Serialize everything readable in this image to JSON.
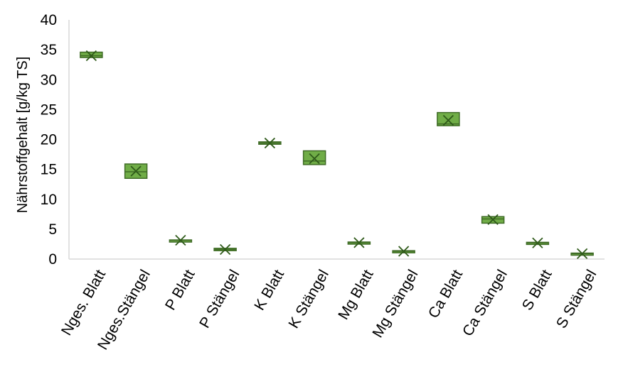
{
  "chart_data": {
    "type": "box",
    "title": "",
    "xlabel": "",
    "ylabel": "Nährstoffgehalt [g/kg TS]",
    "ylim": [
      0,
      40
    ],
    "yticks": [
      0,
      5,
      10,
      15,
      20,
      25,
      30,
      35,
      40
    ],
    "grid": false,
    "legend": "none",
    "box_fill_color": "#70AD47",
    "box_edge_color": "#3F6B26",
    "categories": [
      "Nges. Blatt",
      "Nges.Stängel",
      "P Blatt",
      "P Stängel",
      "K Blatt",
      "K Stängel",
      "Mg Blatt",
      "Mg Stängel",
      "Ca Blatt",
      "Ca Stängel",
      "S Blatt",
      "S Stängel"
    ],
    "boxes": [
      {
        "q1": 33.7,
        "median": 34.0,
        "q3": 34.6,
        "mean": 34.0
      },
      {
        "q1": 13.5,
        "median": 14.6,
        "q3": 15.9,
        "mean": 14.7
      },
      {
        "q1": 3.1,
        "median": 3.15,
        "q3": 3.2,
        "mean": 3.15
      },
      {
        "q1": 1.4,
        "median": 1.6,
        "q3": 1.8,
        "mean": 1.6
      },
      {
        "q1": 19.2,
        "median": 19.4,
        "q3": 19.6,
        "mean": 19.4
      },
      {
        "q1": 15.8,
        "median": 16.4,
        "q3": 18.1,
        "mean": 16.8
      },
      {
        "q1": 2.65,
        "median": 2.75,
        "q3": 2.85,
        "mean": 2.75
      },
      {
        "q1": 1.2,
        "median": 1.3,
        "q3": 1.4,
        "mean": 1.3
      },
      {
        "q1": 22.3,
        "median": 22.6,
        "q3": 24.5,
        "mean": 23.2
      },
      {
        "q1": 6.0,
        "median": 6.7,
        "q3": 7.1,
        "mean": 6.6
      },
      {
        "q1": 2.6,
        "median": 2.7,
        "q3": 2.8,
        "mean": 2.7
      },
      {
        "q1": 0.8,
        "median": 0.9,
        "q3": 1.0,
        "mean": 0.9
      }
    ]
  }
}
